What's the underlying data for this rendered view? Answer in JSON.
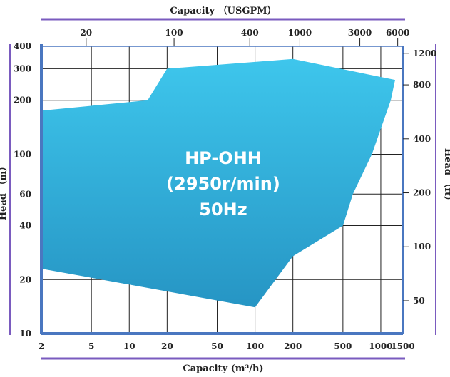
{
  "chart_data": {
    "type": "area",
    "title": "",
    "x_axis_bottom": {
      "label": "Capacity (m³/h)",
      "scale": "log",
      "range": [
        2,
        1500
      ],
      "ticks": [
        2,
        5,
        10,
        20,
        50,
        100,
        200,
        500,
        1000,
        1500
      ]
    },
    "x_axis_top": {
      "label": "Capacity （USGPM）",
      "scale": "log",
      "ticks": [
        20,
        100,
        400,
        1000,
        3000,
        6000
      ]
    },
    "y_axis_left": {
      "label": "Head （m）",
      "scale": "log",
      "range": [
        10,
        400
      ],
      "ticks": [
        10,
        20,
        40,
        60,
        100,
        200,
        300,
        400
      ]
    },
    "y_axis_right": {
      "label": "Head （ft）",
      "scale": "log",
      "ticks": [
        50,
        100,
        200,
        400,
        800,
        1200
      ]
    },
    "grid": true,
    "region": {
      "name": "",
      "label_lines": [
        "HP-OHH",
        "(2950r/min)",
        "50Hz"
      ],
      "color": "#2ea9d3",
      "boundary": [
        {
          "q": 2,
          "h": 175
        },
        {
          "q": 14,
          "h": 200
        },
        {
          "q": 20,
          "h": 300
        },
        {
          "q": 200,
          "h": 340
        },
        {
          "q": 1300,
          "h": 260
        },
        {
          "q": 1200,
          "h": 200
        },
        {
          "q": 850,
          "h": 100
        },
        {
          "q": 600,
          "h": 60
        },
        {
          "q": 500,
          "h": 40
        },
        {
          "q": 200,
          "h": 27
        },
        {
          "q": 100,
          "h": 14
        },
        {
          "q": 2,
          "h": 23
        }
      ]
    },
    "colors": {
      "axis_line": "#4a77c0",
      "top_rule": "#7a5bbf",
      "grid": "#222222",
      "region_light": "#3ec6ec",
      "region_dark": "#2695c4"
    }
  }
}
